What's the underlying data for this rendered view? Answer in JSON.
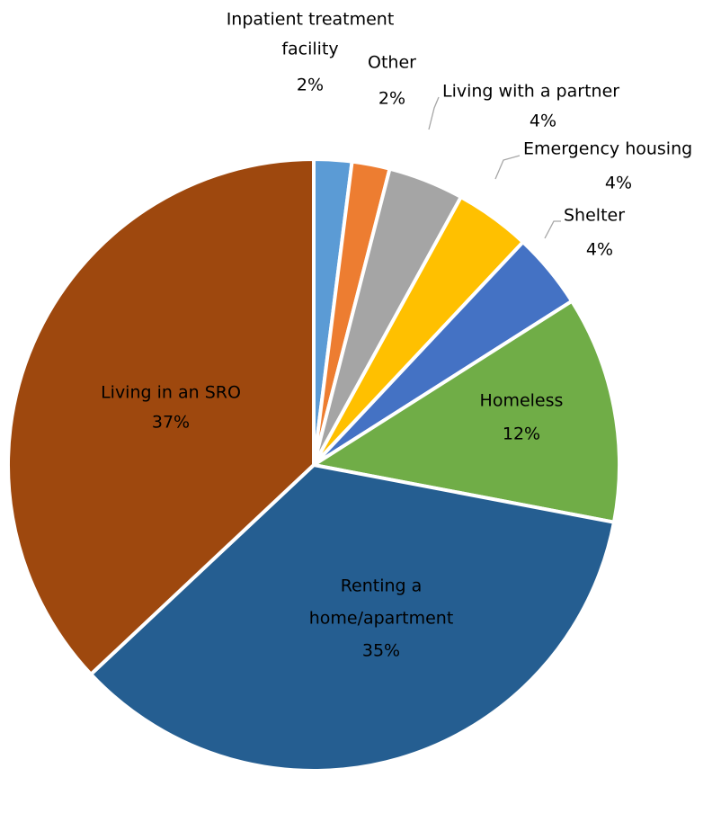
{
  "chart_data": {
    "type": "pie",
    "start_angle_deg": 0,
    "direction": "clockwise",
    "legend": "none",
    "slices": [
      {
        "label_lines": [
          "Inpatient treatment",
          "facility"
        ],
        "percent_label": "2%",
        "value": 2,
        "color": "#5b9bd5"
      },
      {
        "label_lines": [
          "Other"
        ],
        "percent_label": "2%",
        "value": 2,
        "color": "#ed7d31"
      },
      {
        "label_lines": [
          "Living with a partner"
        ],
        "percent_label": "4%",
        "value": 4,
        "color": "#a5a5a5"
      },
      {
        "label_lines": [
          "Emergency housing"
        ],
        "percent_label": "4%",
        "value": 4,
        "color": "#ffc000"
      },
      {
        "label_lines": [
          "Shelter"
        ],
        "percent_label": "4%",
        "value": 4,
        "color": "#4472c4"
      },
      {
        "label_lines": [
          "Homeless"
        ],
        "percent_label": "12%",
        "value": 12,
        "color": "#70ad47"
      },
      {
        "label_lines": [
          "Renting a",
          "home/apartment"
        ],
        "percent_label": "35%",
        "value": 35,
        "color": "#255e91"
      },
      {
        "label_lines": [
          "Living in an SRO"
        ],
        "percent_label": "37%",
        "value": 37,
        "color": "#9e480e"
      }
    ]
  }
}
